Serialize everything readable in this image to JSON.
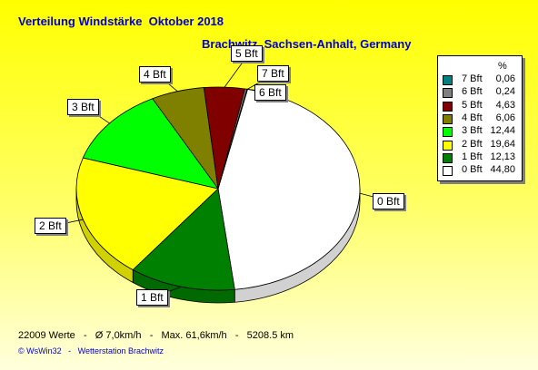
{
  "header": {
    "title": "Verteilung Windstärke  Oktober 2018",
    "subtitle": "Brachwitz, Sachsen-Anhalt, Germany"
  },
  "legend": {
    "unit": "%"
  },
  "footer": {
    "stats": "22009 Werte   -   Ø 7,0km/h   -   Max. 61,6km/h   -   5208.5 km",
    "credit": "© WsWin32   -   Wetterstation Brachwitz"
  },
  "chart_data": {
    "type": "pie",
    "title": "Verteilung Windstärke  Oktober 2018",
    "subtitle": "Brachwitz, Sachsen-Anhalt, Germany",
    "legend_position": "right",
    "slices": [
      {
        "label": "0 Bft",
        "value": "44,80",
        "num": 44.8,
        "color": "#ffffff"
      },
      {
        "label": "1 Bft",
        "value": "12,13",
        "num": 12.13,
        "color": "#008000"
      },
      {
        "label": "2 Bft",
        "value": "19,64",
        "num": 19.64,
        "color": "#ffff00"
      },
      {
        "label": "3 Bft",
        "value": "12,44",
        "num": 12.44,
        "color": "#00ff00"
      },
      {
        "label": "4 Bft",
        "value": "6,06",
        "num": 6.06,
        "color": "#808000"
      },
      {
        "label": "5 Bft",
        "value": "4,63",
        "num": 4.63,
        "color": "#800000"
      },
      {
        "label": "6 Bft",
        "value": "0,24",
        "num": 0.24,
        "color": "#808080"
      },
      {
        "label": "7 Bft",
        "value": "0,06",
        "num": 0.06,
        "color": "#008080"
      }
    ]
  }
}
